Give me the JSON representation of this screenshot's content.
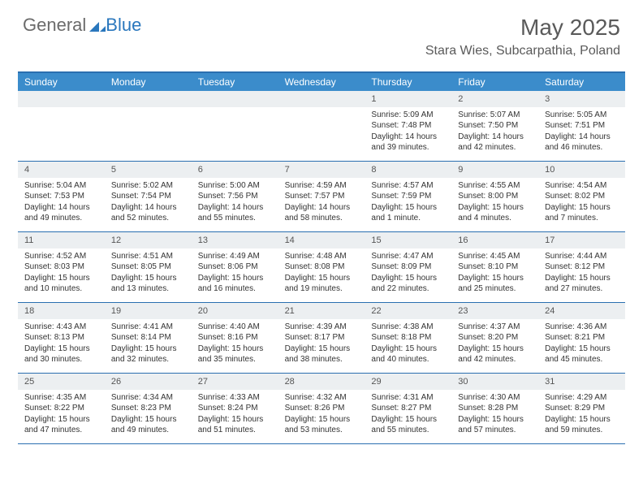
{
  "brand": {
    "part1": "General",
    "part2": "Blue"
  },
  "title": {
    "month": "May 2025",
    "location": "Stara Wies, Subcarpathia, Poland"
  },
  "colors": {
    "header_bar": "#3b8ccb",
    "header_border": "#2a6fb0",
    "daynum_bg": "#eceff1",
    "text": "#333333",
    "brand_gray": "#6b6b6b",
    "brand_blue": "#2a77bd"
  },
  "daysOfWeek": [
    "Sunday",
    "Monday",
    "Tuesday",
    "Wednesday",
    "Thursday",
    "Friday",
    "Saturday"
  ],
  "firstDayOffset": 4,
  "days": [
    {
      "n": 1,
      "sunrise": "5:09 AM",
      "sunset": "7:48 PM",
      "daylight": "14 hours and 39 minutes."
    },
    {
      "n": 2,
      "sunrise": "5:07 AM",
      "sunset": "7:50 PM",
      "daylight": "14 hours and 42 minutes."
    },
    {
      "n": 3,
      "sunrise": "5:05 AM",
      "sunset": "7:51 PM",
      "daylight": "14 hours and 46 minutes."
    },
    {
      "n": 4,
      "sunrise": "5:04 AM",
      "sunset": "7:53 PM",
      "daylight": "14 hours and 49 minutes."
    },
    {
      "n": 5,
      "sunrise": "5:02 AM",
      "sunset": "7:54 PM",
      "daylight": "14 hours and 52 minutes."
    },
    {
      "n": 6,
      "sunrise": "5:00 AM",
      "sunset": "7:56 PM",
      "daylight": "14 hours and 55 minutes."
    },
    {
      "n": 7,
      "sunrise": "4:59 AM",
      "sunset": "7:57 PM",
      "daylight": "14 hours and 58 minutes."
    },
    {
      "n": 8,
      "sunrise": "4:57 AM",
      "sunset": "7:59 PM",
      "daylight": "15 hours and 1 minute."
    },
    {
      "n": 9,
      "sunrise": "4:55 AM",
      "sunset": "8:00 PM",
      "daylight": "15 hours and 4 minutes."
    },
    {
      "n": 10,
      "sunrise": "4:54 AM",
      "sunset": "8:02 PM",
      "daylight": "15 hours and 7 minutes."
    },
    {
      "n": 11,
      "sunrise": "4:52 AM",
      "sunset": "8:03 PM",
      "daylight": "15 hours and 10 minutes."
    },
    {
      "n": 12,
      "sunrise": "4:51 AM",
      "sunset": "8:05 PM",
      "daylight": "15 hours and 13 minutes."
    },
    {
      "n": 13,
      "sunrise": "4:49 AM",
      "sunset": "8:06 PM",
      "daylight": "15 hours and 16 minutes."
    },
    {
      "n": 14,
      "sunrise": "4:48 AM",
      "sunset": "8:08 PM",
      "daylight": "15 hours and 19 minutes."
    },
    {
      "n": 15,
      "sunrise": "4:47 AM",
      "sunset": "8:09 PM",
      "daylight": "15 hours and 22 minutes."
    },
    {
      "n": 16,
      "sunrise": "4:45 AM",
      "sunset": "8:10 PM",
      "daylight": "15 hours and 25 minutes."
    },
    {
      "n": 17,
      "sunrise": "4:44 AM",
      "sunset": "8:12 PM",
      "daylight": "15 hours and 27 minutes."
    },
    {
      "n": 18,
      "sunrise": "4:43 AM",
      "sunset": "8:13 PM",
      "daylight": "15 hours and 30 minutes."
    },
    {
      "n": 19,
      "sunrise": "4:41 AM",
      "sunset": "8:14 PM",
      "daylight": "15 hours and 32 minutes."
    },
    {
      "n": 20,
      "sunrise": "4:40 AM",
      "sunset": "8:16 PM",
      "daylight": "15 hours and 35 minutes."
    },
    {
      "n": 21,
      "sunrise": "4:39 AM",
      "sunset": "8:17 PM",
      "daylight": "15 hours and 38 minutes."
    },
    {
      "n": 22,
      "sunrise": "4:38 AM",
      "sunset": "8:18 PM",
      "daylight": "15 hours and 40 minutes."
    },
    {
      "n": 23,
      "sunrise": "4:37 AM",
      "sunset": "8:20 PM",
      "daylight": "15 hours and 42 minutes."
    },
    {
      "n": 24,
      "sunrise": "4:36 AM",
      "sunset": "8:21 PM",
      "daylight": "15 hours and 45 minutes."
    },
    {
      "n": 25,
      "sunrise": "4:35 AM",
      "sunset": "8:22 PM",
      "daylight": "15 hours and 47 minutes."
    },
    {
      "n": 26,
      "sunrise": "4:34 AM",
      "sunset": "8:23 PM",
      "daylight": "15 hours and 49 minutes."
    },
    {
      "n": 27,
      "sunrise": "4:33 AM",
      "sunset": "8:24 PM",
      "daylight": "15 hours and 51 minutes."
    },
    {
      "n": 28,
      "sunrise": "4:32 AM",
      "sunset": "8:26 PM",
      "daylight": "15 hours and 53 minutes."
    },
    {
      "n": 29,
      "sunrise": "4:31 AM",
      "sunset": "8:27 PM",
      "daylight": "15 hours and 55 minutes."
    },
    {
      "n": 30,
      "sunrise": "4:30 AM",
      "sunset": "8:28 PM",
      "daylight": "15 hours and 57 minutes."
    },
    {
      "n": 31,
      "sunrise": "4:29 AM",
      "sunset": "8:29 PM",
      "daylight": "15 hours and 59 minutes."
    }
  ],
  "labels": {
    "sunrise": "Sunrise:",
    "sunset": "Sunset:",
    "daylight": "Daylight:"
  }
}
